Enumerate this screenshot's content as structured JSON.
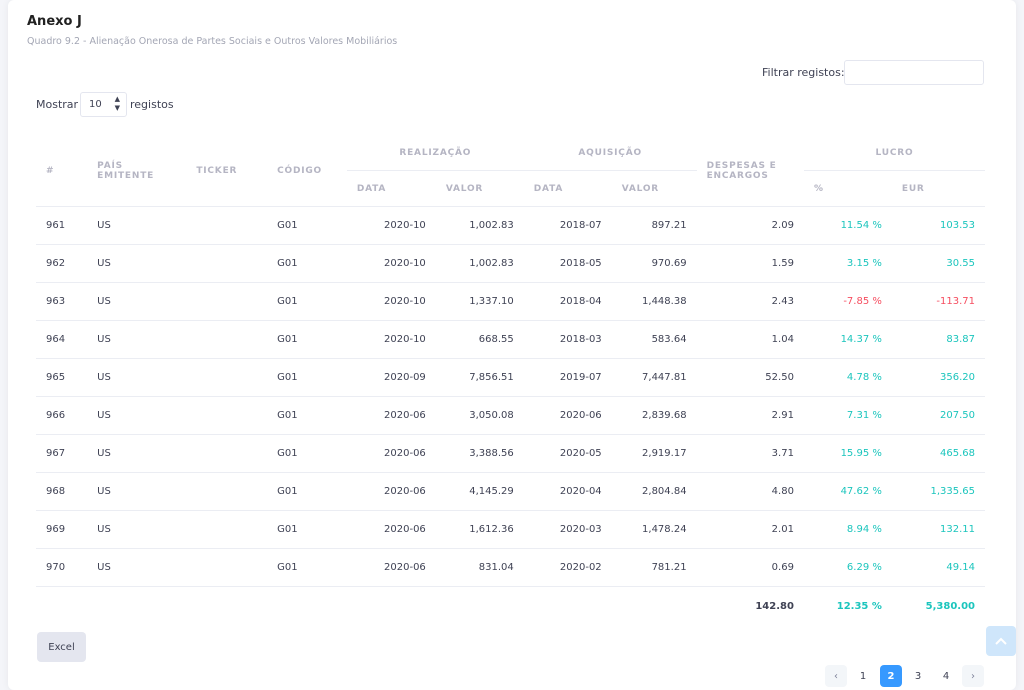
{
  "header": {
    "title": "Anexo J",
    "subtitle": "Quadro 9.2 - Alienação Onerosa de Partes Sociais e Outros Valores Mobiliários"
  },
  "filter": {
    "label": "Filtrar registos:",
    "value": ""
  },
  "length": {
    "label_before": "Mostrar",
    "value": "10",
    "label_after": "registos"
  },
  "table": {
    "headers": {
      "index": "#",
      "country": "PAÍS EMITENTE",
      "ticker": "TICKER",
      "code": "CÓDIGO",
      "realization": "REALIZAÇÃO",
      "acquisition": "AQUISIÇÃO",
      "expenses": "DESPESAS E ENCARGOS",
      "profit": "LUCRO",
      "date": "DATA",
      "value": "VALOR",
      "pct": "%",
      "eur": "EUR"
    },
    "rows": [
      {
        "n": "961",
        "country": "US",
        "ticker": "",
        "code": "G01",
        "r_date": "2020-10",
        "r_value": "1,002.83",
        "a_date": "2018-07",
        "a_value": "897.21",
        "exp": "2.09",
        "pct": "11.54 %",
        "eur": "103.53",
        "sign": "pos"
      },
      {
        "n": "962",
        "country": "US",
        "ticker": "",
        "code": "G01",
        "r_date": "2020-10",
        "r_value": "1,002.83",
        "a_date": "2018-05",
        "a_value": "970.69",
        "exp": "1.59",
        "pct": "3.15 %",
        "eur": "30.55",
        "sign": "pos"
      },
      {
        "n": "963",
        "country": "US",
        "ticker": "",
        "code": "G01",
        "r_date": "2020-10",
        "r_value": "1,337.10",
        "a_date": "2018-04",
        "a_value": "1,448.38",
        "exp": "2.43",
        "pct": "-7.85 %",
        "eur": "-113.71",
        "sign": "neg"
      },
      {
        "n": "964",
        "country": "US",
        "ticker": "",
        "code": "G01",
        "r_date": "2020-10",
        "r_value": "668.55",
        "a_date": "2018-03",
        "a_value": "583.64",
        "exp": "1.04",
        "pct": "14.37 %",
        "eur": "83.87",
        "sign": "pos"
      },
      {
        "n": "965",
        "country": "US",
        "ticker": "",
        "code": "G01",
        "r_date": "2020-09",
        "r_value": "7,856.51",
        "a_date": "2019-07",
        "a_value": "7,447.81",
        "exp": "52.50",
        "pct": "4.78 %",
        "eur": "356.20",
        "sign": "pos"
      },
      {
        "n": "966",
        "country": "US",
        "ticker": "",
        "code": "G01",
        "r_date": "2020-06",
        "r_value": "3,050.08",
        "a_date": "2020-06",
        "a_value": "2,839.68",
        "exp": "2.91",
        "pct": "7.31 %",
        "eur": "207.50",
        "sign": "pos"
      },
      {
        "n": "967",
        "country": "US",
        "ticker": "",
        "code": "G01",
        "r_date": "2020-06",
        "r_value": "3,388.56",
        "a_date": "2020-05",
        "a_value": "2,919.17",
        "exp": "3.71",
        "pct": "15.95 %",
        "eur": "465.68",
        "sign": "pos"
      },
      {
        "n": "968",
        "country": "US",
        "ticker": "",
        "code": "G01",
        "r_date": "2020-06",
        "r_value": "4,145.29",
        "a_date": "2020-04",
        "a_value": "2,804.84",
        "exp": "4.80",
        "pct": "47.62 %",
        "eur": "1,335.65",
        "sign": "pos"
      },
      {
        "n": "969",
        "country": "US",
        "ticker": "",
        "code": "G01",
        "r_date": "2020-06",
        "r_value": "1,612.36",
        "a_date": "2020-03",
        "a_value": "1,478.24",
        "exp": "2.01",
        "pct": "8.94 %",
        "eur": "132.11",
        "sign": "pos"
      },
      {
        "n": "970",
        "country": "US",
        "ticker": "",
        "code": "G01",
        "r_date": "2020-06",
        "r_value": "831.04",
        "a_date": "2020-02",
        "a_value": "781.21",
        "exp": "0.69",
        "pct": "6.29 %",
        "eur": "49.14",
        "sign": "pos"
      }
    ],
    "totals": {
      "exp": "142.80",
      "pct": "12.35 %",
      "eur": "5,380.00"
    }
  },
  "buttons": {
    "excel": "Excel"
  },
  "pagination": {
    "pages": [
      "1",
      "2",
      "3",
      "4"
    ],
    "current": "2"
  },
  "colors": {
    "positive": "#1bc5bd",
    "negative": "#f64e60",
    "accent": "#3699ff"
  },
  "icons": {
    "prev": "chevron-left-icon",
    "next": "chevron-right-icon",
    "scroll_top": "chevron-up-icon",
    "select": "sort-arrows-icon"
  }
}
